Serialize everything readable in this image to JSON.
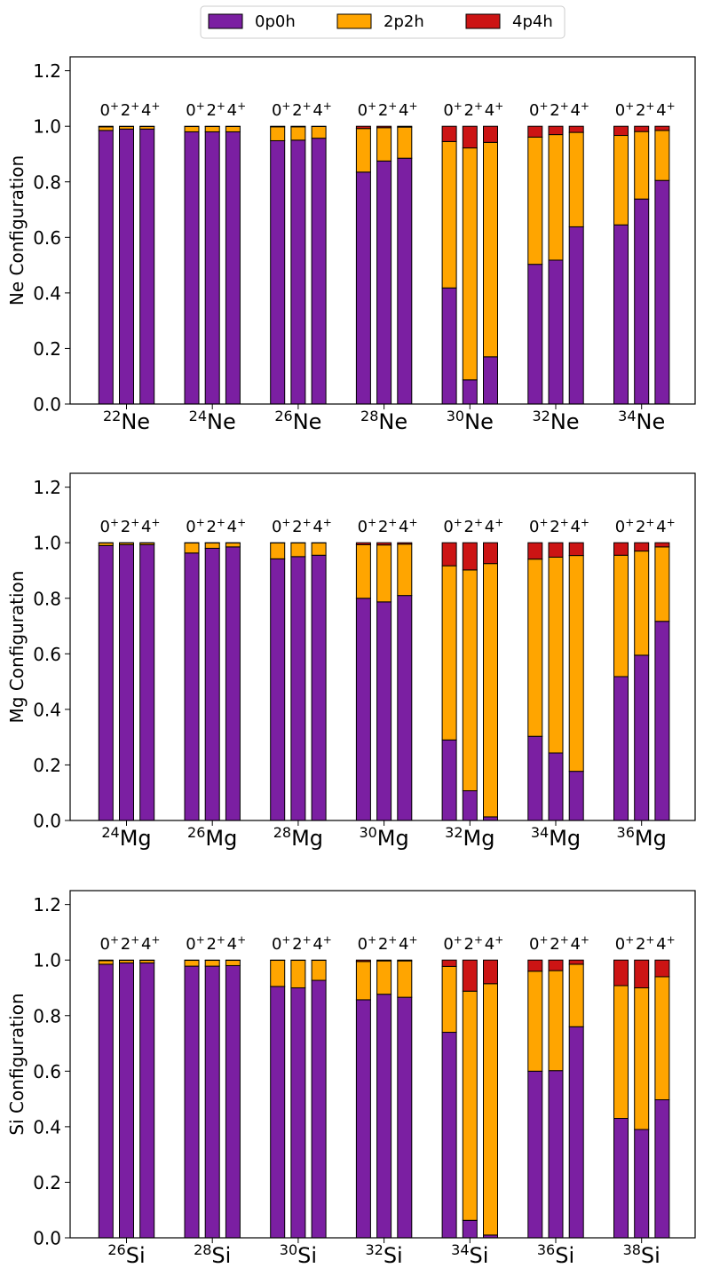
{
  "legend": {
    "position": "top-center",
    "entries": [
      {
        "label": "0p0h",
        "color": "#7b1fa2"
      },
      {
        "label": "2p2h",
        "color": "#ffa500"
      },
      {
        "label": "4p4h",
        "color": "#cc1414"
      }
    ]
  },
  "state_labels": [
    {
      "base": "0",
      "sup": "+"
    },
    {
      "base": "2",
      "sup": "+"
    },
    {
      "base": "4",
      "sup": "+"
    }
  ],
  "chart_data": [
    {
      "type": "bar",
      "stacked": true,
      "ylabel": "Ne Configuration",
      "ylim": [
        0,
        1.25
      ],
      "yticks": [
        "0.0",
        "0.2",
        "0.4",
        "0.6",
        "0.8",
        "1.0",
        "1.2"
      ],
      "categories": [
        {
          "mass": "22",
          "symbol": "Ne"
        },
        {
          "mass": "24",
          "symbol": "Ne"
        },
        {
          "mass": "26",
          "symbol": "Ne"
        },
        {
          "mass": "28",
          "symbol": "Ne"
        },
        {
          "mass": "30",
          "symbol": "Ne"
        },
        {
          "mass": "32",
          "symbol": "Ne"
        },
        {
          "mass": "34",
          "symbol": "Ne"
        }
      ],
      "series": [
        {
          "name": "0p0h",
          "values": [
            [
              0.985,
              0.99,
              0.99
            ],
            [
              0.98,
              0.98,
              0.98
            ],
            [
              0.948,
              0.95,
              0.957
            ],
            [
              0.835,
              0.875,
              0.885
            ],
            [
              0.418,
              0.087,
              0.17
            ],
            [
              0.503,
              0.518,
              0.638
            ],
            [
              0.645,
              0.738,
              0.805
            ]
          ]
        },
        {
          "name": "2p2h",
          "values": [
            [
              0.013,
              0.009,
              0.009
            ],
            [
              0.019,
              0.019,
              0.019
            ],
            [
              0.05,
              0.048,
              0.042
            ],
            [
              0.157,
              0.12,
              0.112
            ],
            [
              0.527,
              0.835,
              0.772
            ],
            [
              0.458,
              0.452,
              0.34
            ],
            [
              0.322,
              0.243,
              0.18
            ]
          ]
        },
        {
          "name": "4p4h",
          "values": [
            [
              0.002,
              0.001,
              0.001
            ],
            [
              0.001,
              0.001,
              0.001
            ],
            [
              0.002,
              0.002,
              0.001
            ],
            [
              0.008,
              0.005,
              0.003
            ],
            [
              0.055,
              0.078,
              0.058
            ],
            [
              0.039,
              0.03,
              0.022
            ],
            [
              0.033,
              0.019,
              0.015
            ]
          ]
        }
      ]
    },
    {
      "type": "bar",
      "stacked": true,
      "ylabel": "Mg Configuration",
      "ylim": [
        0,
        1.25
      ],
      "yticks": [
        "0.0",
        "0.2",
        "0.4",
        "0.6",
        "0.8",
        "1.0",
        "1.2"
      ],
      "categories": [
        {
          "mass": "24",
          "symbol": "Mg"
        },
        {
          "mass": "26",
          "symbol": "Mg"
        },
        {
          "mass": "28",
          "symbol": "Mg"
        },
        {
          "mass": "30",
          "symbol": "Mg"
        },
        {
          "mass": "32",
          "symbol": "Mg"
        },
        {
          "mass": "34",
          "symbol": "Mg"
        },
        {
          "mass": "36",
          "symbol": "Mg"
        }
      ],
      "series": [
        {
          "name": "0p0h",
          "values": [
            [
              0.99,
              0.993,
              0.993
            ],
            [
              0.963,
              0.98,
              0.985
            ],
            [
              0.942,
              0.95,
              0.955
            ],
            [
              0.8,
              0.787,
              0.81
            ],
            [
              0.29,
              0.107,
              0.013
            ],
            [
              0.303,
              0.243,
              0.177
            ],
            [
              0.518,
              0.595,
              0.717
            ]
          ]
        },
        {
          "name": "2p2h",
          "values": [
            [
              0.009,
              0.006,
              0.006
            ],
            [
              0.036,
              0.019,
              0.014
            ],
            [
              0.057,
              0.049,
              0.044
            ],
            [
              0.193,
              0.205,
              0.185
            ],
            [
              0.627,
              0.795,
              0.912
            ],
            [
              0.638,
              0.705,
              0.777
            ],
            [
              0.437,
              0.375,
              0.268
            ]
          ]
        },
        {
          "name": "4p4h",
          "values": [
            [
              0.001,
              0.001,
              0.001
            ],
            [
              0.001,
              0.001,
              0.001
            ],
            [
              0.001,
              0.001,
              0.001
            ],
            [
              0.007,
              0.008,
              0.005
            ],
            [
              0.083,
              0.098,
              0.075
            ],
            [
              0.059,
              0.052,
              0.046
            ],
            [
              0.045,
              0.03,
              0.015
            ]
          ]
        }
      ]
    },
    {
      "type": "bar",
      "stacked": true,
      "ylabel": "Si Configuration",
      "ylim": [
        0,
        1.25
      ],
      "yticks": [
        "0.0",
        "0.2",
        "0.4",
        "0.6",
        "0.8",
        "1.0",
        "1.2"
      ],
      "categories": [
        {
          "mass": "26",
          "symbol": "Si"
        },
        {
          "mass": "28",
          "symbol": "Si"
        },
        {
          "mass": "30",
          "symbol": "Si"
        },
        {
          "mass": "32",
          "symbol": "Si"
        },
        {
          "mass": "34",
          "symbol": "Si"
        },
        {
          "mass": "36",
          "symbol": "Si"
        },
        {
          "mass": "38",
          "symbol": "Si"
        }
      ],
      "series": [
        {
          "name": "0p0h",
          "values": [
            [
              0.985,
              0.99,
              0.99
            ],
            [
              0.978,
              0.978,
              0.98
            ],
            [
              0.905,
              0.9,
              0.927
            ],
            [
              0.857,
              0.877,
              0.866
            ],
            [
              0.74,
              0.063,
              0.01
            ],
            [
              0.6,
              0.602,
              0.76
            ],
            [
              0.43,
              0.39,
              0.497
            ]
          ]
        },
        {
          "name": "2p2h",
          "values": [
            [
              0.013,
              0.009,
              0.009
            ],
            [
              0.021,
              0.021,
              0.019
            ],
            [
              0.094,
              0.099,
              0.072
            ],
            [
              0.138,
              0.12,
              0.131
            ],
            [
              0.237,
              0.825,
              0.905
            ],
            [
              0.36,
              0.36,
              0.225
            ],
            [
              0.478,
              0.51,
              0.443
            ]
          ]
        },
        {
          "name": "4p4h",
          "values": [
            [
              0.002,
              0.001,
              0.001
            ],
            [
              0.001,
              0.001,
              0.001
            ],
            [
              0.001,
              0.001,
              0.001
            ],
            [
              0.005,
              0.003,
              0.003
            ],
            [
              0.023,
              0.112,
              0.085
            ],
            [
              0.04,
              0.038,
              0.015
            ],
            [
              0.092,
              0.1,
              0.06
            ]
          ]
        }
      ]
    }
  ]
}
